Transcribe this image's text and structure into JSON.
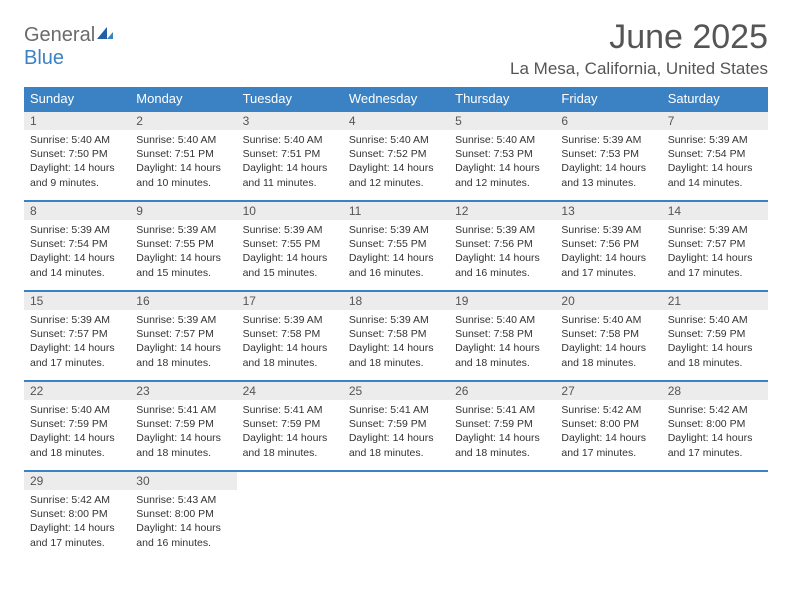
{
  "logo": {
    "word1": "General",
    "word2": "Blue"
  },
  "title": "June 2025",
  "location": "La Mesa, California, United States",
  "colors": {
    "header_bg": "#3b82c4",
    "header_text": "#ffffff",
    "daynum_bg": "#ececec",
    "text": "#333333",
    "title_text": "#555555",
    "logo_gray": "#6b6b6b",
    "logo_blue": "#3b82c4",
    "row_border": "#3b82c4",
    "page_bg": "#ffffff"
  },
  "typography": {
    "title_fontsize": 34,
    "location_fontsize": 17,
    "dayheader_fontsize": 13,
    "daynum_fontsize": 12,
    "body_fontsize": 10.5,
    "logo_fontsize": 20
  },
  "day_headers": [
    "Sunday",
    "Monday",
    "Tuesday",
    "Wednesday",
    "Thursday",
    "Friday",
    "Saturday"
  ],
  "weeks": [
    [
      {
        "n": "1",
        "sunrise": "Sunrise: 5:40 AM",
        "sunset": "Sunset: 7:50 PM",
        "daylight": "Daylight: 14 hours and 9 minutes."
      },
      {
        "n": "2",
        "sunrise": "Sunrise: 5:40 AM",
        "sunset": "Sunset: 7:51 PM",
        "daylight": "Daylight: 14 hours and 10 minutes."
      },
      {
        "n": "3",
        "sunrise": "Sunrise: 5:40 AM",
        "sunset": "Sunset: 7:51 PM",
        "daylight": "Daylight: 14 hours and 11 minutes."
      },
      {
        "n": "4",
        "sunrise": "Sunrise: 5:40 AM",
        "sunset": "Sunset: 7:52 PM",
        "daylight": "Daylight: 14 hours and 12 minutes."
      },
      {
        "n": "5",
        "sunrise": "Sunrise: 5:40 AM",
        "sunset": "Sunset: 7:53 PM",
        "daylight": "Daylight: 14 hours and 12 minutes."
      },
      {
        "n": "6",
        "sunrise": "Sunrise: 5:39 AM",
        "sunset": "Sunset: 7:53 PM",
        "daylight": "Daylight: 14 hours and 13 minutes."
      },
      {
        "n": "7",
        "sunrise": "Sunrise: 5:39 AM",
        "sunset": "Sunset: 7:54 PM",
        "daylight": "Daylight: 14 hours and 14 minutes."
      }
    ],
    [
      {
        "n": "8",
        "sunrise": "Sunrise: 5:39 AM",
        "sunset": "Sunset: 7:54 PM",
        "daylight": "Daylight: 14 hours and 14 minutes."
      },
      {
        "n": "9",
        "sunrise": "Sunrise: 5:39 AM",
        "sunset": "Sunset: 7:55 PM",
        "daylight": "Daylight: 14 hours and 15 minutes."
      },
      {
        "n": "10",
        "sunrise": "Sunrise: 5:39 AM",
        "sunset": "Sunset: 7:55 PM",
        "daylight": "Daylight: 14 hours and 15 minutes."
      },
      {
        "n": "11",
        "sunrise": "Sunrise: 5:39 AM",
        "sunset": "Sunset: 7:55 PM",
        "daylight": "Daylight: 14 hours and 16 minutes."
      },
      {
        "n": "12",
        "sunrise": "Sunrise: 5:39 AM",
        "sunset": "Sunset: 7:56 PM",
        "daylight": "Daylight: 14 hours and 16 minutes."
      },
      {
        "n": "13",
        "sunrise": "Sunrise: 5:39 AM",
        "sunset": "Sunset: 7:56 PM",
        "daylight": "Daylight: 14 hours and 17 minutes."
      },
      {
        "n": "14",
        "sunrise": "Sunrise: 5:39 AM",
        "sunset": "Sunset: 7:57 PM",
        "daylight": "Daylight: 14 hours and 17 minutes."
      }
    ],
    [
      {
        "n": "15",
        "sunrise": "Sunrise: 5:39 AM",
        "sunset": "Sunset: 7:57 PM",
        "daylight": "Daylight: 14 hours and 17 minutes."
      },
      {
        "n": "16",
        "sunrise": "Sunrise: 5:39 AM",
        "sunset": "Sunset: 7:57 PM",
        "daylight": "Daylight: 14 hours and 18 minutes."
      },
      {
        "n": "17",
        "sunrise": "Sunrise: 5:39 AM",
        "sunset": "Sunset: 7:58 PM",
        "daylight": "Daylight: 14 hours and 18 minutes."
      },
      {
        "n": "18",
        "sunrise": "Sunrise: 5:39 AM",
        "sunset": "Sunset: 7:58 PM",
        "daylight": "Daylight: 14 hours and 18 minutes."
      },
      {
        "n": "19",
        "sunrise": "Sunrise: 5:40 AM",
        "sunset": "Sunset: 7:58 PM",
        "daylight": "Daylight: 14 hours and 18 minutes."
      },
      {
        "n": "20",
        "sunrise": "Sunrise: 5:40 AM",
        "sunset": "Sunset: 7:58 PM",
        "daylight": "Daylight: 14 hours and 18 minutes."
      },
      {
        "n": "21",
        "sunrise": "Sunrise: 5:40 AM",
        "sunset": "Sunset: 7:59 PM",
        "daylight": "Daylight: 14 hours and 18 minutes."
      }
    ],
    [
      {
        "n": "22",
        "sunrise": "Sunrise: 5:40 AM",
        "sunset": "Sunset: 7:59 PM",
        "daylight": "Daylight: 14 hours and 18 minutes."
      },
      {
        "n": "23",
        "sunrise": "Sunrise: 5:41 AM",
        "sunset": "Sunset: 7:59 PM",
        "daylight": "Daylight: 14 hours and 18 minutes."
      },
      {
        "n": "24",
        "sunrise": "Sunrise: 5:41 AM",
        "sunset": "Sunset: 7:59 PM",
        "daylight": "Daylight: 14 hours and 18 minutes."
      },
      {
        "n": "25",
        "sunrise": "Sunrise: 5:41 AM",
        "sunset": "Sunset: 7:59 PM",
        "daylight": "Daylight: 14 hours and 18 minutes."
      },
      {
        "n": "26",
        "sunrise": "Sunrise: 5:41 AM",
        "sunset": "Sunset: 7:59 PM",
        "daylight": "Daylight: 14 hours and 18 minutes."
      },
      {
        "n": "27",
        "sunrise": "Sunrise: 5:42 AM",
        "sunset": "Sunset: 8:00 PM",
        "daylight": "Daylight: 14 hours and 17 minutes."
      },
      {
        "n": "28",
        "sunrise": "Sunrise: 5:42 AM",
        "sunset": "Sunset: 8:00 PM",
        "daylight": "Daylight: 14 hours and 17 minutes."
      }
    ],
    [
      {
        "n": "29",
        "sunrise": "Sunrise: 5:42 AM",
        "sunset": "Sunset: 8:00 PM",
        "daylight": "Daylight: 14 hours and 17 minutes."
      },
      {
        "n": "30",
        "sunrise": "Sunrise: 5:43 AM",
        "sunset": "Sunset: 8:00 PM",
        "daylight": "Daylight: 14 hours and 16 minutes."
      },
      null,
      null,
      null,
      null,
      null
    ]
  ]
}
